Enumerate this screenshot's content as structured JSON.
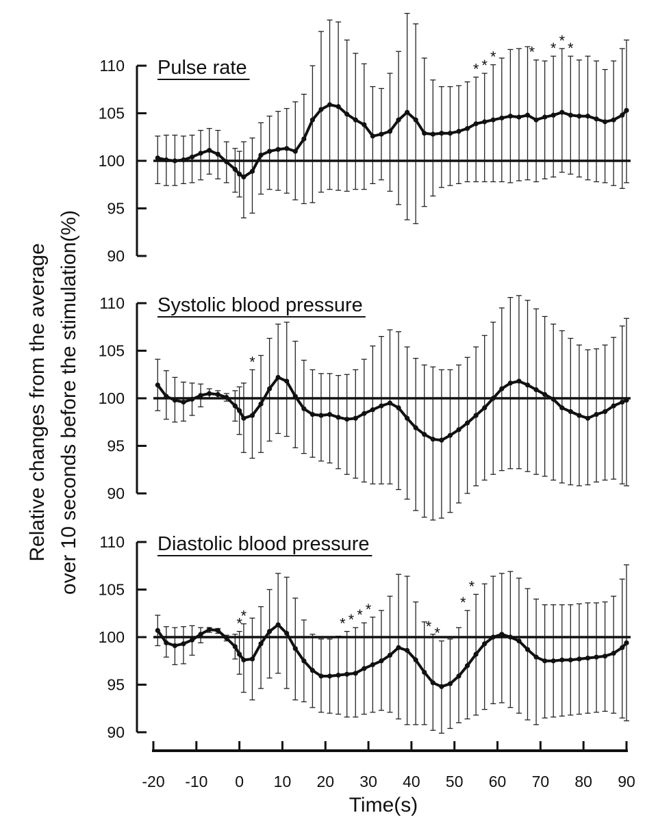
{
  "figure": {
    "ylabel_line1": "Relative changes from the average",
    "ylabel_line2": "over 10 seconds before the stimulation(%)",
    "xlabel": "Time(s)",
    "x_ticks": [
      "-20",
      "-10",
      "0",
      "10",
      "20",
      "30",
      "40",
      "50",
      "60",
      "70",
      "80",
      "90"
    ],
    "y_ticks": [
      "90",
      "95",
      "100",
      "105",
      "110"
    ]
  },
  "chart_data": [
    {
      "type": "line",
      "title": "Pulse rate",
      "xlabel": "Time(s)",
      "ylabel": "Relative changes from the average over 10 seconds before the stimulation(%)",
      "xlim": [
        -20,
        90
      ],
      "ylim": [
        90,
        110
      ],
      "baseline": 100,
      "x": [
        -19,
        -17,
        -15,
        -13,
        -11,
        -9,
        -7,
        -5,
        -3,
        -1,
        0,
        1,
        3,
        5,
        7,
        9,
        11,
        13,
        15,
        17,
        19,
        21,
        23,
        25,
        27,
        29,
        31,
        33,
        35,
        37,
        39,
        41,
        43,
        45,
        47,
        49,
        51,
        53,
        55,
        57,
        59,
        61,
        63,
        65,
        67,
        69,
        71,
        73,
        75,
        77,
        79,
        81,
        83,
        85,
        87,
        89,
        90
      ],
      "mean": [
        100.3,
        100.1,
        100.0,
        100.1,
        100.4,
        100.8,
        101.1,
        100.7,
        99.9,
        99.1,
        98.6,
        98.3,
        98.9,
        100.6,
        101.0,
        101.2,
        101.3,
        101.0,
        102.3,
        104.3,
        105.4,
        105.9,
        105.7,
        104.9,
        104.3,
        103.8,
        102.6,
        102.8,
        103.1,
        104.3,
        105.1,
        104.3,
        102.9,
        102.8,
        102.9,
        102.9,
        103.1,
        103.4,
        103.9,
        104.1,
        104.3,
        104.5,
        104.7,
        104.6,
        104.8,
        104.3,
        104.6,
        104.8,
        105.1,
        104.8,
        104.7,
        104.7,
        104.4,
        104.1,
        104.3,
        104.8,
        105.3
      ],
      "upper": [
        102.6,
        102.7,
        102.7,
        102.6,
        102.7,
        103.2,
        103.4,
        103.2,
        102.0,
        101.3,
        101.0,
        102.0,
        102.4,
        104.0,
        104.7,
        105.2,
        105.5,
        106.2,
        107.0,
        110.0,
        113.6,
        114.8,
        114.6,
        112.7,
        111.3,
        110.2,
        107.8,
        107.6,
        109.2,
        111.5,
        115.5,
        114.4,
        110.8,
        108.5,
        107.8,
        107.8,
        107.9,
        108.3,
        108.8,
        109.2,
        110.1,
        110.8,
        111.7,
        111.8,
        112.0,
        110.6,
        110.5,
        111.0,
        111.8,
        111.0,
        110.6,
        111.0,
        110.5,
        109.6,
        110.5,
        111.8,
        112.7
      ],
      "lower": [
        97.6,
        97.4,
        97.4,
        97.6,
        97.7,
        98.0,
        98.6,
        98.1,
        97.7,
        96.7,
        96.2,
        94.0,
        94.5,
        96.5,
        97.0,
        96.9,
        96.6,
        95.9,
        95.5,
        95.6,
        96.7,
        97.0,
        96.9,
        96.8,
        97.0,
        97.0,
        97.6,
        98.0,
        96.8,
        95.4,
        93.8,
        93.4,
        95.2,
        96.3,
        97.2,
        97.4,
        97.6,
        97.8,
        97.8,
        97.8,
        97.8,
        97.8,
        97.7,
        97.9,
        98.0,
        97.8,
        98.1,
        98.3,
        98.8,
        98.6,
        98.3,
        98.0,
        97.8,
        97.7,
        97.4,
        97.1,
        97.7
      ],
      "significance_marks_x": [
        55,
        57,
        59,
        68,
        73,
        75,
        77
      ]
    },
    {
      "type": "line",
      "title": "Systolic blood pressure",
      "xlabel": "Time(s)",
      "ylabel": "Relative changes from the average over 10 seconds before the stimulation(%)",
      "xlim": [
        -20,
        90
      ],
      "ylim": [
        90,
        110
      ],
      "baseline": 100,
      "x": [
        -19,
        -17,
        -15,
        -13,
        -11,
        -9,
        -7,
        -5,
        -3,
        -1,
        0,
        1,
        3,
        5,
        7,
        9,
        11,
        13,
        15,
        17,
        19,
        21,
        23,
        25,
        27,
        29,
        31,
        33,
        35,
        37,
        39,
        41,
        43,
        45,
        47,
        49,
        51,
        53,
        55,
        57,
        59,
        61,
        63,
        65,
        67,
        69,
        71,
        73,
        75,
        77,
        79,
        81,
        83,
        85,
        87,
        89,
        90
      ],
      "mean": [
        101.4,
        100.2,
        99.8,
        99.6,
        99.9,
        100.3,
        100.5,
        100.4,
        100.1,
        99.2,
        98.7,
        97.9,
        98.2,
        99.4,
        101.0,
        102.2,
        101.8,
        100.2,
        98.9,
        98.3,
        98.2,
        98.3,
        98.0,
        97.8,
        97.9,
        98.4,
        98.8,
        99.2,
        99.5,
        99.0,
        97.9,
        96.9,
        96.2,
        95.7,
        95.6,
        96.1,
        96.7,
        97.4,
        98.2,
        99.0,
        100.0,
        101.0,
        101.6,
        101.8,
        101.4,
        100.9,
        100.4,
        99.9,
        99.0,
        98.6,
        98.2,
        97.9,
        98.3,
        98.6,
        99.2,
        99.6,
        99.8
      ],
      "upper": [
        104.1,
        102.9,
        102.2,
        101.7,
        101.6,
        101.5,
        101.0,
        100.8,
        100.5,
        100.8,
        101.2,
        101.6,
        103.0,
        104.5,
        106.3,
        107.8,
        108.0,
        106.0,
        104.0,
        103.0,
        102.6,
        102.6,
        102.4,
        102.5,
        103.0,
        104.1,
        105.5,
        106.5,
        107.2,
        107.0,
        105.4,
        104.2,
        103.5,
        103.3,
        103.0,
        103.0,
        103.5,
        104.3,
        105.4,
        106.6,
        108.0,
        109.5,
        110.6,
        110.8,
        110.3,
        109.4,
        108.6,
        107.8,
        107.1,
        106.3,
        105.6,
        105.1,
        105.2,
        105.6,
        106.4,
        107.6,
        108.4
      ],
      "lower": [
        98.7,
        97.8,
        97.5,
        97.6,
        98.2,
        99.1,
        100.0,
        100.0,
        99.7,
        97.6,
        96.2,
        94.3,
        93.7,
        94.3,
        95.5,
        96.3,
        96.0,
        94.8,
        94.2,
        93.8,
        93.4,
        93.2,
        92.6,
        92.0,
        91.6,
        91.2,
        91.0,
        91.0,
        91.0,
        90.4,
        89.4,
        88.2,
        87.5,
        87.2,
        87.4,
        88.0,
        89.0,
        90.0,
        90.8,
        91.4,
        92.0,
        92.4,
        92.6,
        92.6,
        92.3,
        92.0,
        91.8,
        91.4,
        91.1,
        90.9,
        90.8,
        90.9,
        91.2,
        91.4,
        91.5,
        91.0,
        90.8
      ],
      "significance_marks_x": [
        3
      ]
    },
    {
      "type": "line",
      "title": "Diastolic blood pressure",
      "xlabel": "Time(s)",
      "ylabel": "Relative changes from the average over 10 seconds before the stimulation(%)",
      "xlim": [
        -20,
        90
      ],
      "ylim": [
        90,
        110
      ],
      "baseline": 100,
      "x": [
        -19,
        -17,
        -15,
        -13,
        -11,
        -9,
        -7,
        -5,
        -3,
        -1,
        0,
        1,
        3,
        5,
        7,
        9,
        11,
        13,
        15,
        17,
        19,
        21,
        23,
        25,
        27,
        29,
        31,
        33,
        35,
        37,
        39,
        41,
        43,
        45,
        47,
        49,
        51,
        53,
        55,
        57,
        59,
        61,
        63,
        65,
        67,
        69,
        71,
        73,
        75,
        77,
        79,
        81,
        83,
        85,
        87,
        89,
        90
      ],
      "mean": [
        100.7,
        99.4,
        99.1,
        99.3,
        99.7,
        100.3,
        100.8,
        100.7,
        99.9,
        99.0,
        98.2,
        97.6,
        97.7,
        99.3,
        100.6,
        101.3,
        100.4,
        98.8,
        97.5,
        96.5,
        95.9,
        95.9,
        96.0,
        96.1,
        96.2,
        96.7,
        97.1,
        97.5,
        98.1,
        98.9,
        98.6,
        97.6,
        96.3,
        95.2,
        94.8,
        95.1,
        95.9,
        97.0,
        98.2,
        99.3,
        100.0,
        100.3,
        100.0,
        99.6,
        98.7,
        97.9,
        97.5,
        97.5,
        97.6,
        97.6,
        97.7,
        97.8,
        97.9,
        98.0,
        98.3,
        98.9,
        99.4
      ],
      "upper": [
        102.3,
        101.1,
        101.0,
        101.1,
        101.2,
        101.0,
        101.0,
        100.9,
        100.2,
        100.3,
        100.6,
        101.4,
        102.0,
        103.2,
        105.0,
        106.7,
        106.3,
        104.1,
        101.8,
        100.3,
        99.8,
        99.8,
        100.1,
        100.6,
        101.0,
        101.5,
        102.1,
        102.8,
        104.3,
        106.6,
        106.4,
        103.7,
        101.6,
        100.3,
        99.6,
        99.8,
        101.0,
        102.8,
        104.5,
        105.6,
        106.4,
        106.7,
        106.9,
        106.2,
        105.1,
        104.0,
        103.4,
        103.4,
        103.4,
        103.4,
        103.5,
        103.6,
        103.6,
        103.7,
        104.3,
        106.1,
        107.6
      ],
      "lower": [
        99.1,
        97.9,
        97.1,
        97.2,
        98.1,
        99.4,
        100.5,
        100.4,
        99.6,
        97.7,
        96.1,
        94.2,
        93.4,
        94.6,
        95.7,
        96.2,
        94.6,
        93.4,
        93.2,
        92.6,
        92.1,
        92.0,
        91.9,
        91.6,
        91.6,
        91.9,
        92.1,
        92.3,
        92.1,
        91.4,
        90.8,
        90.8,
        90.8,
        90.2,
        89.9,
        90.4,
        91.0,
        91.4,
        91.8,
        92.4,
        93.0,
        93.1,
        92.6,
        92.0,
        91.3,
        90.8,
        91.5,
        91.6,
        91.7,
        91.8,
        91.9,
        92.0,
        92.1,
        92.2,
        92.0,
        91.5,
        91.2
      ],
      "significance_marks_x": [
        0,
        1,
        24,
        26,
        28,
        30,
        44,
        46,
        52,
        54
      ]
    }
  ]
}
